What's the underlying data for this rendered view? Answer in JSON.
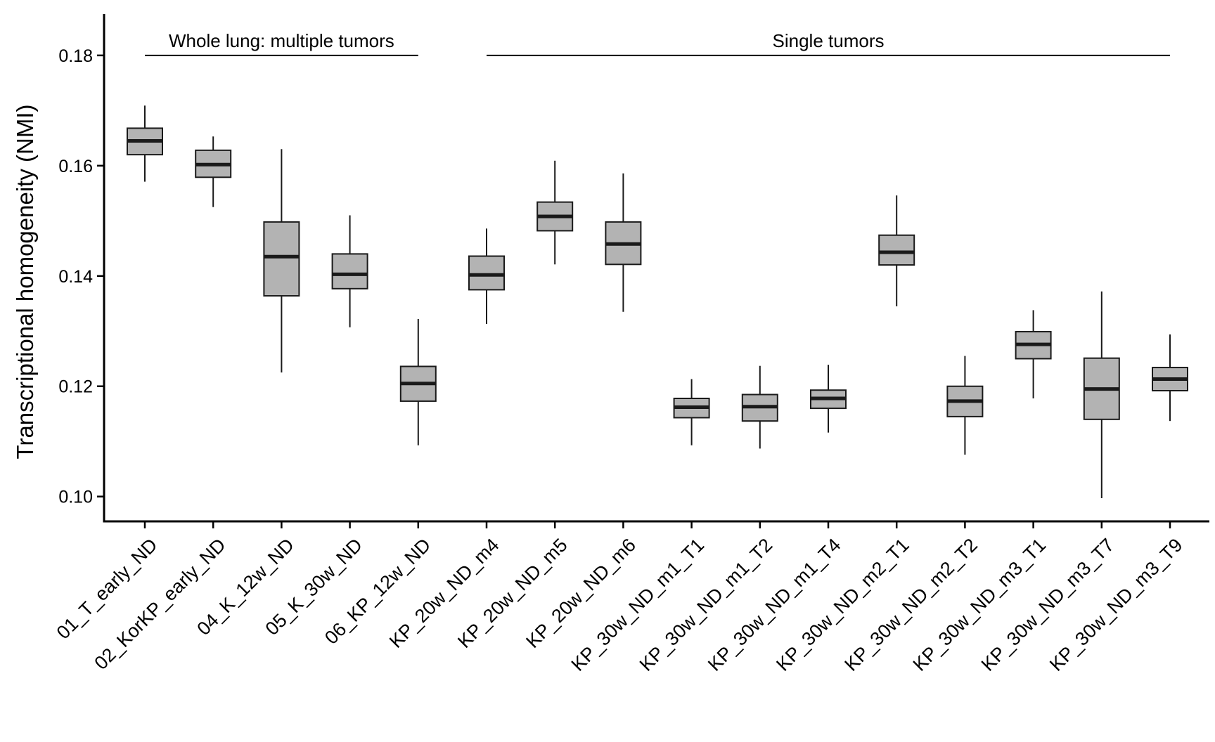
{
  "chart_data": {
    "type": "box",
    "ylabel": "Transcriptional homogeneity (NMI)",
    "xlabel": "",
    "ylim": [
      0.0955,
      0.1875
    ],
    "yticks": [
      0.1,
      0.12,
      0.14,
      0.16,
      0.18
    ],
    "ytick_labels": [
      "0.10",
      "0.12",
      "0.14",
      "0.16",
      "0.18"
    ],
    "grid": false,
    "box_fill": "#b3b3b3",
    "line_color": "#1a1a1a",
    "groups": [
      {
        "label": "Whole lung: multiple tumors",
        "y": 0.18,
        "from": 0,
        "to": 4
      },
      {
        "label": "Single tumors",
        "y": 0.18,
        "from": 5,
        "to": 15
      }
    ],
    "categories": [
      "01_T_early_ND",
      "02_KorKP_early_ND",
      "04_K_12w_ND",
      "05_K_30w_ND",
      "06_KP_12w_ND",
      "KP_20w_ND_m4",
      "KP_20w_ND_m5",
      "KP_20w_ND_m6",
      "KP_30w_ND_m1_T1",
      "KP_30w_ND_m1_T2",
      "KP_30w_ND_m1_T4",
      "KP_30w_ND_m2_T1",
      "KP_30w_ND_m2_T2",
      "KP_30w_ND_m3_T1",
      "KP_30w_ND_m3_T7",
      "KP_30w_ND_m3_T9"
    ],
    "boxes": [
      {
        "min": 0.1571,
        "q1": 0.162,
        "median": 0.1645,
        "q3": 0.1668,
        "max": 0.1709
      },
      {
        "min": 0.1525,
        "q1": 0.1579,
        "median": 0.1602,
        "q3": 0.1628,
        "max": 0.1653
      },
      {
        "min": 0.1225,
        "q1": 0.1364,
        "median": 0.1435,
        "q3": 0.1498,
        "max": 0.163
      },
      {
        "min": 0.1307,
        "q1": 0.1377,
        "median": 0.1403,
        "q3": 0.144,
        "max": 0.151
      },
      {
        "min": 0.1093,
        "q1": 0.1173,
        "median": 0.1205,
        "q3": 0.1236,
        "max": 0.1322
      },
      {
        "min": 0.1313,
        "q1": 0.1375,
        "median": 0.1402,
        "q3": 0.1436,
        "max": 0.1486
      },
      {
        "min": 0.1421,
        "q1": 0.1482,
        "median": 0.1508,
        "q3": 0.1534,
        "max": 0.1609
      },
      {
        "min": 0.1335,
        "q1": 0.1421,
        "median": 0.1458,
        "q3": 0.1498,
        "max": 0.1586
      },
      {
        "min": 0.1093,
        "q1": 0.1143,
        "median": 0.1162,
        "q3": 0.1178,
        "max": 0.1213
      },
      {
        "min": 0.1087,
        "q1": 0.1137,
        "median": 0.1163,
        "q3": 0.1185,
        "max": 0.1237
      },
      {
        "min": 0.1116,
        "q1": 0.116,
        "median": 0.1178,
        "q3": 0.1193,
        "max": 0.1239
      },
      {
        "min": 0.1345,
        "q1": 0.142,
        "median": 0.1443,
        "q3": 0.1474,
        "max": 0.1546
      },
      {
        "min": 0.1076,
        "q1": 0.1145,
        "median": 0.1173,
        "q3": 0.12,
        "max": 0.1255
      },
      {
        "min": 0.1178,
        "q1": 0.125,
        "median": 0.1276,
        "q3": 0.1299,
        "max": 0.1338
      },
      {
        "min": 0.0997,
        "q1": 0.114,
        "median": 0.1195,
        "q3": 0.1251,
        "max": 0.1372
      },
      {
        "min": 0.1137,
        "q1": 0.1192,
        "median": 0.1213,
        "q3": 0.1234,
        "max": 0.1294
      }
    ]
  }
}
